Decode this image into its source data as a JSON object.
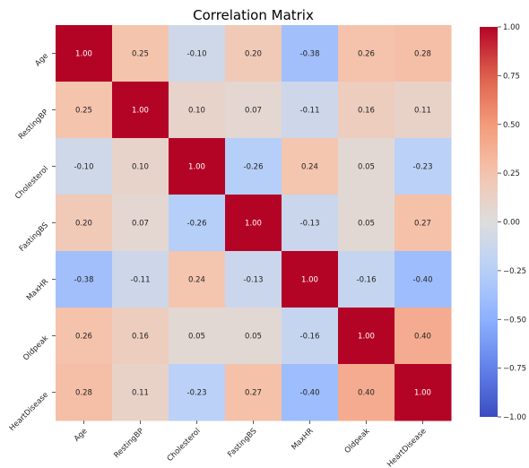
{
  "chart_data": {
    "type": "heatmap",
    "title": "Correlation Matrix",
    "labels": [
      "Age",
      "RestingBP",
      "Cholesterol",
      "FastingBS",
      "MaxHR",
      "Oldpeak",
      "HeartDisease"
    ],
    "matrix": [
      [
        1.0,
        0.25,
        -0.1,
        0.2,
        -0.38,
        0.26,
        0.28
      ],
      [
        0.25,
        1.0,
        0.1,
        0.07,
        -0.11,
        0.16,
        0.11
      ],
      [
        -0.1,
        0.1,
        1.0,
        -0.26,
        0.24,
        0.05,
        -0.23
      ],
      [
        0.2,
        0.07,
        -0.26,
        1.0,
        -0.13,
        0.05,
        0.27
      ],
      [
        -0.38,
        -0.11,
        0.24,
        -0.13,
        1.0,
        -0.16,
        -0.4
      ],
      [
        0.26,
        0.16,
        0.05,
        0.05,
        -0.16,
        1.0,
        0.4
      ],
      [
        0.28,
        0.11,
        -0.23,
        0.27,
        -0.4,
        0.4,
        1.0
      ]
    ],
    "value_format": "0.00",
    "colormap": "coolwarm",
    "vmin": -1.0,
    "vmax": 1.0,
    "colorbar_ticks": [
      "1.00",
      "0.75",
      "0.50",
      "0.25",
      "0.00",
      "−0.25",
      "−0.50",
      "−0.75",
      "−1.00"
    ],
    "colorbar_tick_values": [
      1.0,
      0.75,
      0.5,
      0.25,
      0.0,
      -0.25,
      -0.5,
      -0.75,
      -1.0
    ],
    "colors": {
      "low": "#3b4cc0",
      "mid": "#dddddd",
      "high": "#b40426"
    }
  }
}
